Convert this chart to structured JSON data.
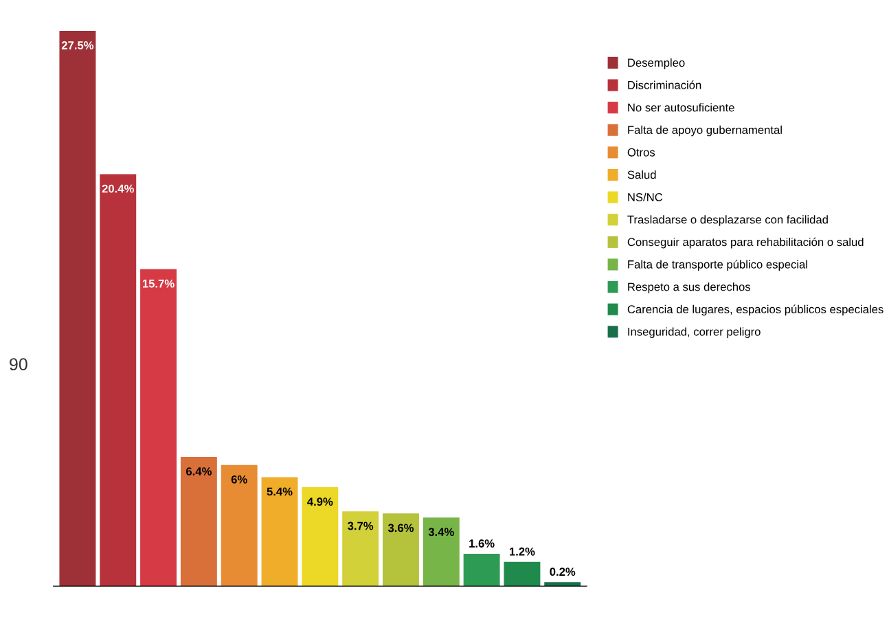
{
  "chart_data": {
    "type": "bar",
    "stacked": true,
    "categories": [
      null,
      null,
      null,
      null,
      null,
      null,
      null,
      null,
      null,
      null,
      null,
      null,
      null
    ],
    "series": [
      {
        "name": "Desempleo",
        "color": "#9e3038",
        "values": [
          27.5,
          0,
          0,
          0,
          0,
          0,
          0,
          0,
          0,
          0,
          0,
          0,
          0
        ],
        "value_labels": [
          "27.5%",
          null,
          null,
          null,
          null,
          null,
          null,
          null,
          null,
          null,
          null,
          null,
          null
        ]
      },
      {
        "name": "Discriminación",
        "color": "#b8323c",
        "values": [
          0,
          20.4,
          0,
          0,
          0,
          0,
          0,
          0,
          0,
          0,
          0,
          0,
          0
        ],
        "value_labels": [
          null,
          "20.4%",
          null,
          null,
          null,
          null,
          null,
          null,
          null,
          null,
          null,
          null,
          null
        ]
      },
      {
        "name": "No ser autosuficiente",
        "color": "#d63a44",
        "values": [
          0,
          0,
          15.7,
          0,
          0,
          0,
          0,
          0,
          0,
          0,
          0,
          0,
          0
        ],
        "value_labels": [
          null,
          null,
          "15.7%",
          null,
          null,
          null,
          null,
          null,
          null,
          null,
          null,
          null,
          null
        ]
      },
      {
        "name": "Falta de apoyo gubernamental",
        "color": "#d9703a",
        "values": [
          0,
          0,
          0,
          6.4,
          0,
          0,
          0,
          0,
          0,
          0,
          0,
          0,
          0
        ],
        "value_labels": [
          null,
          null,
          null,
          "6.4%",
          null,
          null,
          null,
          null,
          null,
          null,
          null,
          null,
          null
        ]
      },
      {
        "name": "Otros",
        "color": "#e88c34",
        "values": [
          0,
          0,
          0,
          0,
          6,
          0,
          0,
          0,
          0,
          0,
          0,
          0,
          0
        ],
        "value_labels": [
          null,
          null,
          null,
          null,
          "6%",
          null,
          null,
          null,
          null,
          null,
          null,
          null,
          null
        ]
      },
      {
        "name": "Salud",
        "color": "#f0ad2a",
        "values": [
          0,
          0,
          0,
          0,
          0,
          5.4,
          0,
          0,
          0,
          0,
          0,
          0,
          0
        ],
        "value_labels": [
          null,
          null,
          null,
          null,
          null,
          "5.4%",
          null,
          null,
          null,
          null,
          null,
          null,
          null
        ]
      },
      {
        "name": "NS/NC",
        "color": "#ecd827",
        "values": [
          0,
          0,
          0,
          0,
          0,
          0,
          4.9,
          0,
          0,
          0,
          0,
          0,
          0
        ],
        "value_labels": [
          null,
          null,
          null,
          null,
          null,
          null,
          "4.9%",
          null,
          null,
          null,
          null,
          null,
          null
        ]
      },
      {
        "name": "Trasladarse o desplazarse con facilidad",
        "color": "#d2d13a",
        "values": [
          0,
          0,
          0,
          0,
          0,
          0,
          0,
          3.7,
          0,
          0,
          0,
          0,
          0
        ],
        "value_labels": [
          null,
          null,
          null,
          null,
          null,
          null,
          null,
          "3.7%",
          null,
          null,
          null,
          null,
          null
        ]
      },
      {
        "name": "Conseguir aparatos para rehabilitación o salud",
        "color": "#b5c23c",
        "values": [
          0,
          0,
          0,
          0,
          0,
          0,
          0,
          0,
          3.6,
          0,
          0,
          0,
          0
        ],
        "value_labels": [
          null,
          null,
          null,
          null,
          null,
          null,
          null,
          null,
          "3.6%",
          null,
          null,
          null,
          null
        ]
      },
      {
        "name": "Falta de transporte público especial",
        "color": "#78b548",
        "values": [
          0,
          0,
          0,
          0,
          0,
          0,
          0,
          0,
          0,
          3.4,
          0,
          0,
          0
        ],
        "value_labels": [
          null,
          null,
          null,
          null,
          null,
          null,
          null,
          null,
          null,
          "3.4%",
          null,
          null,
          null
        ]
      },
      {
        "name": "Respeto a sus derechos",
        "color": "#2e9b55",
        "values": [
          0,
          0,
          0,
          0,
          0,
          0,
          0,
          0,
          0,
          0,
          1.6,
          0,
          0
        ],
        "value_labels": [
          null,
          null,
          null,
          null,
          null,
          null,
          null,
          null,
          null,
          null,
          "1.6%",
          null,
          null
        ]
      },
      {
        "name": "Carencia de lugares, espacios públicos especiales",
        "color": "#1f8a4c",
        "values": [
          0,
          0,
          0,
          0,
          0,
          0,
          0,
          0,
          0,
          0,
          0,
          1.2,
          0
        ],
        "value_labels": [
          null,
          null,
          null,
          null,
          null,
          null,
          null,
          null,
          null,
          null,
          null,
          "1.2%",
          null
        ]
      },
      {
        "name": "Inseguridad, correr peligro",
        "color": "#17704a",
        "values": [
          0,
          0,
          0,
          0,
          0,
          0,
          0,
          0,
          0,
          0,
          0,
          0,
          0.2
        ],
        "value_labels": [
          null,
          null,
          null,
          null,
          null,
          null,
          null,
          null,
          null,
          null,
          null,
          null,
          "0.2%"
        ]
      }
    ],
    "legend": "right",
    "tick_labels": false,
    "annotations": [
      "90"
    ]
  }
}
